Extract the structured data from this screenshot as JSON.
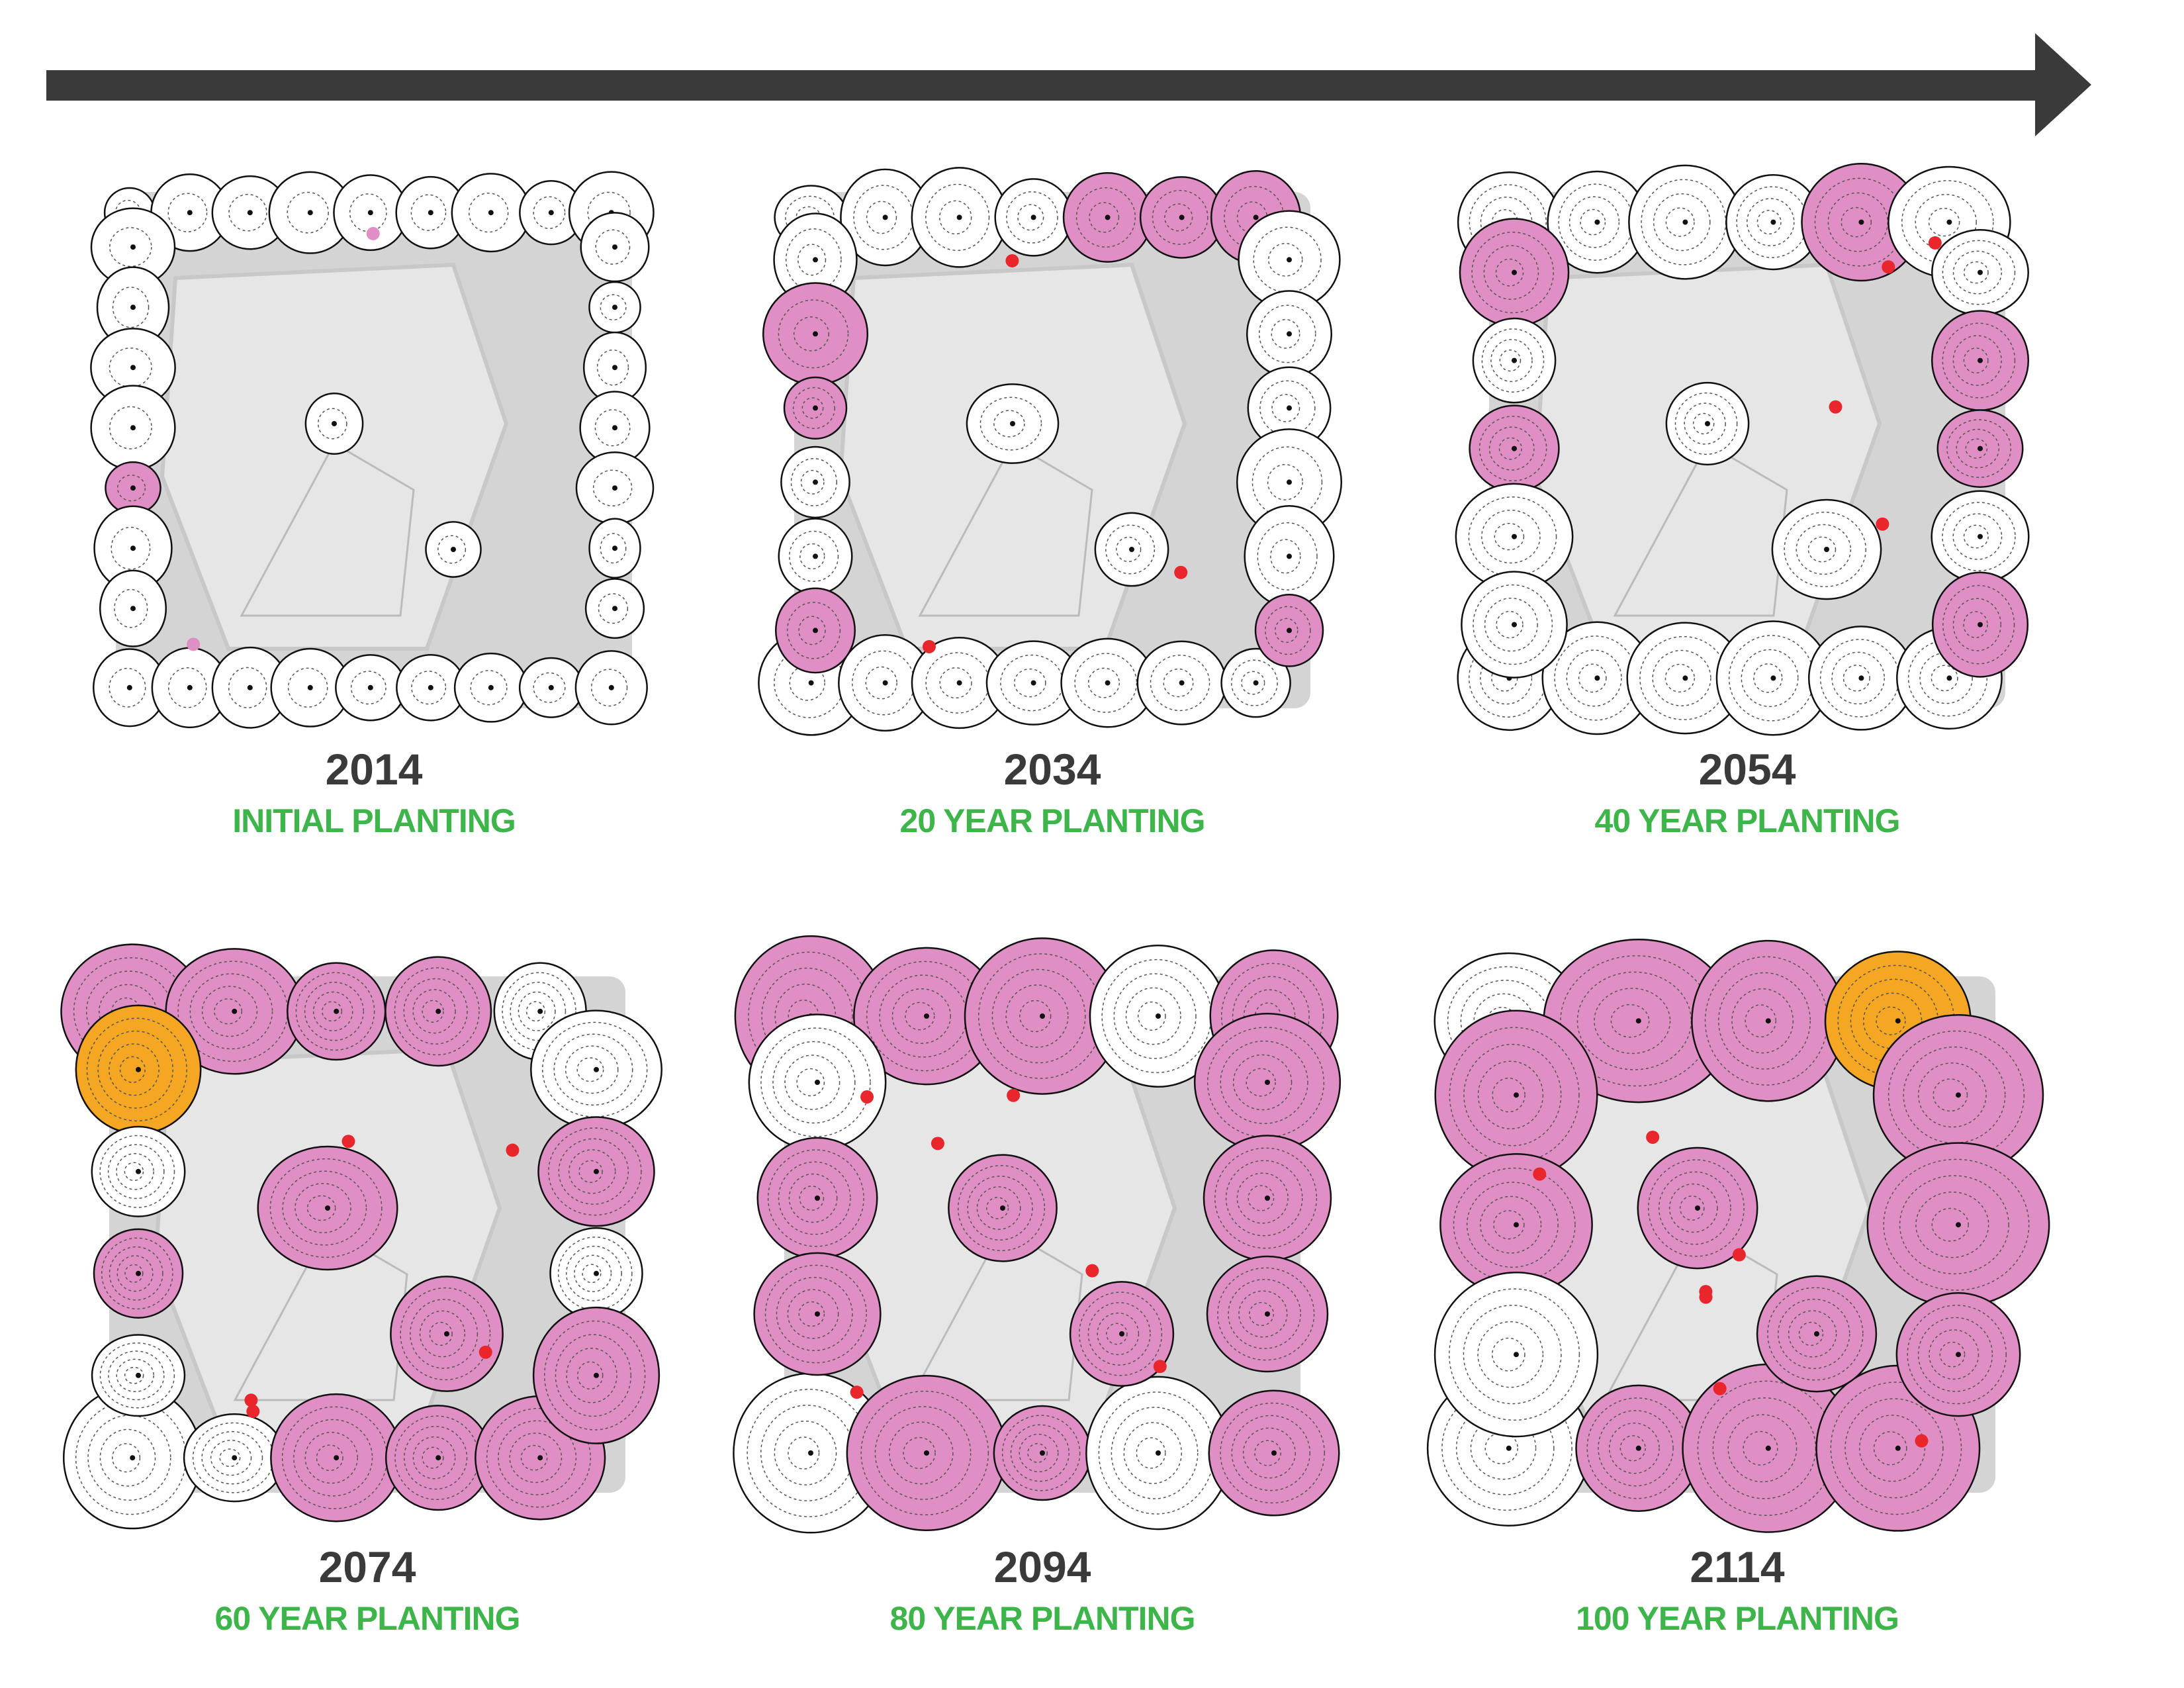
{
  "panels": [
    {
      "year": "2014",
      "caption": "INITIAL  PLANTING"
    },
    {
      "year": "2034",
      "caption": "20 YEAR PLANTING"
    },
    {
      "year": "2054",
      "caption": "40 YEAR PLANTING"
    },
    {
      "year": "2074",
      "caption": "60 YEAR PLANTING"
    },
    {
      "year": "2094",
      "caption": "80 YEAR PLANTING"
    },
    {
      "year": "2114",
      "caption": "100 YEAR PLANTING"
    }
  ]
}
